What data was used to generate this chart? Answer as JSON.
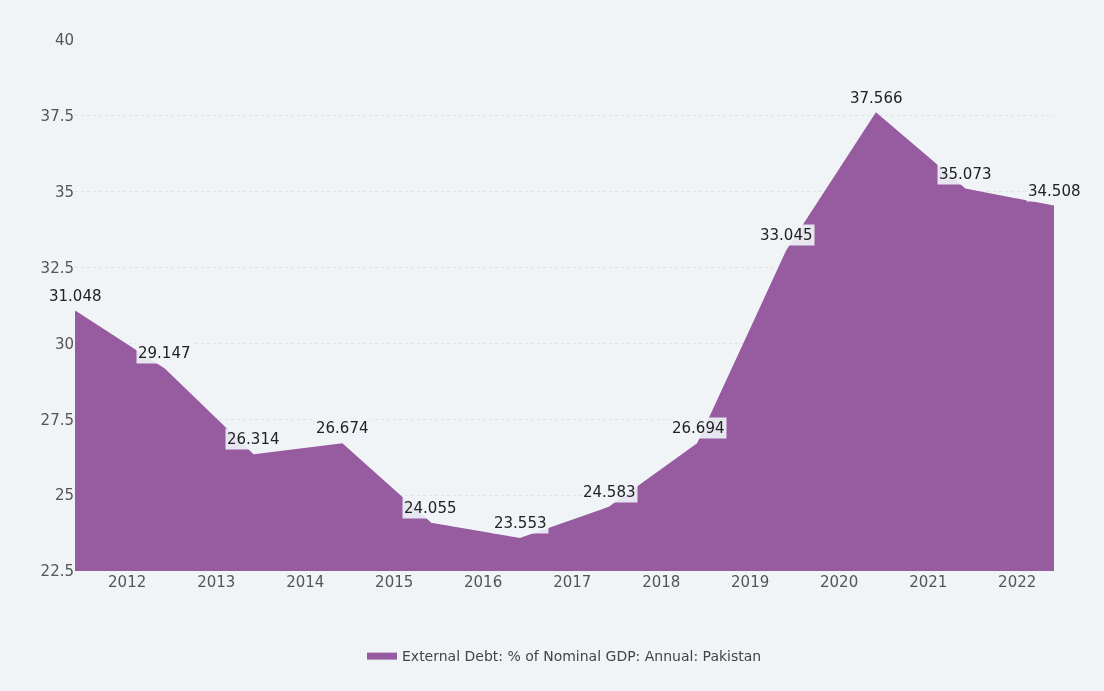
{
  "chart_data": {
    "type": "area",
    "x": [
      "2011-06",
      "2012-06",
      "2013-06",
      "2014-06",
      "2015-06",
      "2016-06",
      "2017-06",
      "2018-06",
      "2019-06",
      "2020-06",
      "2021-06",
      "2022-06"
    ],
    "series": [
      {
        "name": "External Debt: % of Nominal GDP: Annual: Pakistan",
        "color": "#975ba0",
        "values": [
          31.048,
          29.147,
          26.314,
          26.674,
          24.055,
          23.553,
          24.583,
          26.694,
          33.045,
          37.566,
          35.073,
          34.508
        ]
      }
    ],
    "xlim": [
      "2011-06",
      "2022-06"
    ],
    "xticks": [
      "2012",
      "2013",
      "2014",
      "2015",
      "2016",
      "2017",
      "2018",
      "2019",
      "2020",
      "2021",
      "2022"
    ],
    "ylim": [
      22.5,
      40
    ],
    "yticks": [
      22.5,
      25,
      27.5,
      30,
      32.5,
      35,
      37.5,
      40
    ],
    "grid": "y",
    "legend": "bottom",
    "data_labels": true
  }
}
